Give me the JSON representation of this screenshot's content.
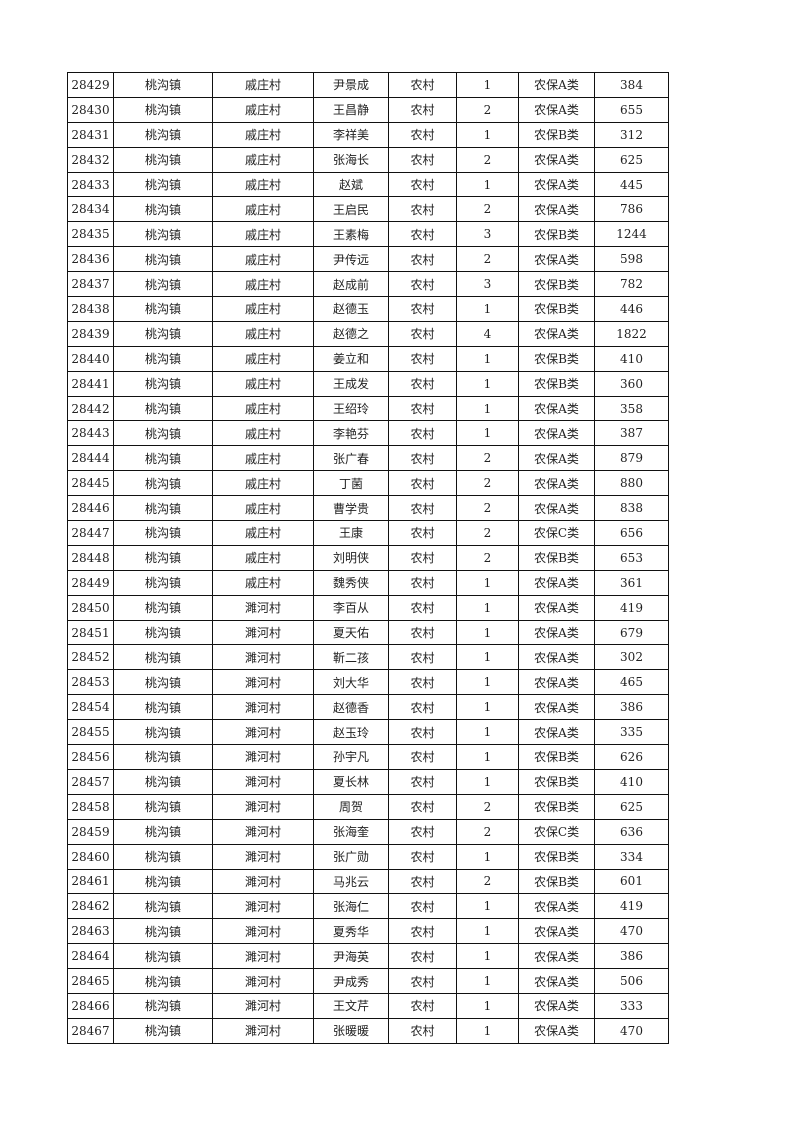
{
  "table": {
    "rows": [
      [
        "28429",
        "桃沟镇",
        "戚庄村",
        "尹景成",
        "农村",
        "1",
        "农保A类",
        "384"
      ],
      [
        "28430",
        "桃沟镇",
        "戚庄村",
        "王昌静",
        "农村",
        "2",
        "农保A类",
        "655"
      ],
      [
        "28431",
        "桃沟镇",
        "戚庄村",
        "李祥美",
        "农村",
        "1",
        "农保B类",
        "312"
      ],
      [
        "28432",
        "桃沟镇",
        "戚庄村",
        "张海长",
        "农村",
        "2",
        "农保A类",
        "625"
      ],
      [
        "28433",
        "桃沟镇",
        "戚庄村",
        "赵斌",
        "农村",
        "1",
        "农保A类",
        "445"
      ],
      [
        "28434",
        "桃沟镇",
        "戚庄村",
        "王启民",
        "农村",
        "2",
        "农保A类",
        "786"
      ],
      [
        "28435",
        "桃沟镇",
        "戚庄村",
        "王素梅",
        "农村",
        "3",
        "农保B类",
        "1244"
      ],
      [
        "28436",
        "桃沟镇",
        "戚庄村",
        "尹传远",
        "农村",
        "2",
        "农保A类",
        "598"
      ],
      [
        "28437",
        "桃沟镇",
        "戚庄村",
        "赵成前",
        "农村",
        "3",
        "农保B类",
        "782"
      ],
      [
        "28438",
        "桃沟镇",
        "戚庄村",
        "赵德玉",
        "农村",
        "1",
        "农保B类",
        "446"
      ],
      [
        "28439",
        "桃沟镇",
        "戚庄村",
        "赵德之",
        "农村",
        "4",
        "农保A类",
        "1822"
      ],
      [
        "28440",
        "桃沟镇",
        "戚庄村",
        "姜立和",
        "农村",
        "1",
        "农保B类",
        "410"
      ],
      [
        "28441",
        "桃沟镇",
        "戚庄村",
        "王成发",
        "农村",
        "1",
        "农保B类",
        "360"
      ],
      [
        "28442",
        "桃沟镇",
        "戚庄村",
        "王绍玲",
        "农村",
        "1",
        "农保A类",
        "358"
      ],
      [
        "28443",
        "桃沟镇",
        "戚庄村",
        "李艳芬",
        "农村",
        "1",
        "农保A类",
        "387"
      ],
      [
        "28444",
        "桃沟镇",
        "戚庄村",
        "张广春",
        "农村",
        "2",
        "农保A类",
        "879"
      ],
      [
        "28445",
        "桃沟镇",
        "戚庄村",
        "丁菌",
        "农村",
        "2",
        "农保A类",
        "880"
      ],
      [
        "28446",
        "桃沟镇",
        "戚庄村",
        "曹学贵",
        "农村",
        "2",
        "农保A类",
        "838"
      ],
      [
        "28447",
        "桃沟镇",
        "戚庄村",
        "王康",
        "农村",
        "2",
        "农保C类",
        "656"
      ],
      [
        "28448",
        "桃沟镇",
        "戚庄村",
        "刘明侠",
        "农村",
        "2",
        "农保B类",
        "653"
      ],
      [
        "28449",
        "桃沟镇",
        "戚庄村",
        "魏秀侠",
        "农村",
        "1",
        "农保A类",
        "361"
      ],
      [
        "28450",
        "桃沟镇",
        "濉河村",
        "李百从",
        "农村",
        "1",
        "农保A类",
        "419"
      ],
      [
        "28451",
        "桃沟镇",
        "濉河村",
        "夏天佑",
        "农村",
        "1",
        "农保A类",
        "679"
      ],
      [
        "28452",
        "桃沟镇",
        "濉河村",
        "靳二孩",
        "农村",
        "1",
        "农保A类",
        "302"
      ],
      [
        "28453",
        "桃沟镇",
        "濉河村",
        "刘大华",
        "农村",
        "1",
        "农保A类",
        "465"
      ],
      [
        "28454",
        "桃沟镇",
        "濉河村",
        "赵德香",
        "农村",
        "1",
        "农保A类",
        "386"
      ],
      [
        "28455",
        "桃沟镇",
        "濉河村",
        "赵玉玲",
        "农村",
        "1",
        "农保A类",
        "335"
      ],
      [
        "28456",
        "桃沟镇",
        "濉河村",
        "孙宇凡",
        "农村",
        "1",
        "农保B类",
        "626"
      ],
      [
        "28457",
        "桃沟镇",
        "濉河村",
        "夏长林",
        "农村",
        "1",
        "农保B类",
        "410"
      ],
      [
        "28458",
        "桃沟镇",
        "濉河村",
        "周贺",
        "农村",
        "2",
        "农保B类",
        "625"
      ],
      [
        "28459",
        "桃沟镇",
        "濉河村",
        "张海奎",
        "农村",
        "2",
        "农保C类",
        "636"
      ],
      [
        "28460",
        "桃沟镇",
        "濉河村",
        "张广勋",
        "农村",
        "1",
        "农保B类",
        "334"
      ],
      [
        "28461",
        "桃沟镇",
        "濉河村",
        "马兆云",
        "农村",
        "2",
        "农保B类",
        "601"
      ],
      [
        "28462",
        "桃沟镇",
        "濉河村",
        "张海仁",
        "农村",
        "1",
        "农保A类",
        "419"
      ],
      [
        "28463",
        "桃沟镇",
        "濉河村",
        "夏秀华",
        "农村",
        "1",
        "农保A类",
        "470"
      ],
      [
        "28464",
        "桃沟镇",
        "濉河村",
        "尹海英",
        "农村",
        "1",
        "农保A类",
        "386"
      ],
      [
        "28465",
        "桃沟镇",
        "濉河村",
        "尹成秀",
        "农村",
        "1",
        "农保A类",
        "506"
      ],
      [
        "28466",
        "桃沟镇",
        "濉河村",
        "王文芹",
        "农村",
        "1",
        "农保A类",
        "333"
      ],
      [
        "28467",
        "桃沟镇",
        "濉河村",
        "张暖暖",
        "农村",
        "1",
        "农保A类",
        "470"
      ]
    ]
  }
}
